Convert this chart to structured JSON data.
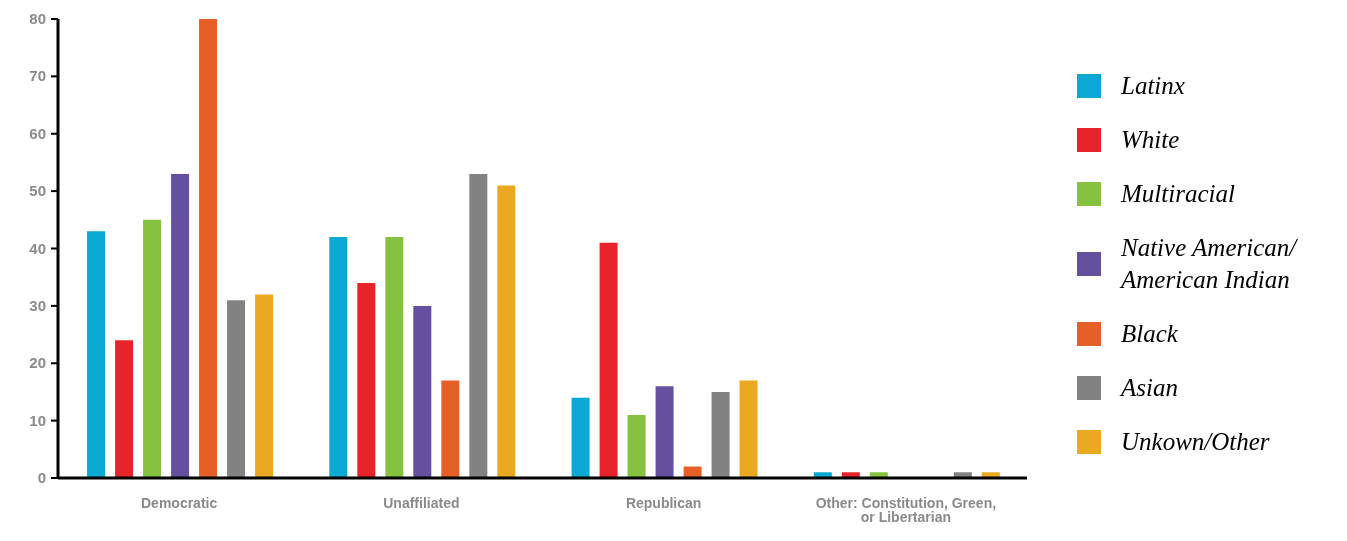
{
  "chart_data": {
    "type": "bar",
    "categories": [
      "Democratic",
      "Unaffiliated",
      "Republican",
      "Other: Constitution, Green, or Libertarian"
    ],
    "series": [
      {
        "name": "Latinx",
        "color": "#0ba8d3",
        "values": [
          43,
          42,
          14,
          1
        ]
      },
      {
        "name": "White",
        "color": "#e8232a",
        "values": [
          24,
          34,
          41,
          1
        ]
      },
      {
        "name": "Multiracial",
        "color": "#86c240",
        "values": [
          45,
          42,
          11,
          1
        ]
      },
      {
        "name": "Native American/ American Indian",
        "color": "#65509f",
        "values": [
          53,
          30,
          16,
          0
        ]
      },
      {
        "name": "Black",
        "color": "#e65f27",
        "values": [
          80,
          17,
          2,
          0
        ]
      },
      {
        "name": "Asian",
        "color": "#828282",
        "values": [
          31,
          53,
          15,
          1
        ]
      },
      {
        "name": "Unkown/Other",
        "color": "#eaa921",
        "values": [
          32,
          51,
          17,
          1
        ]
      }
    ],
    "ylim": [
      0,
      80
    ],
    "yticks": [
      0,
      10,
      20,
      30,
      40,
      50,
      60,
      70,
      80
    ],
    "grid": false,
    "legend": "right"
  }
}
